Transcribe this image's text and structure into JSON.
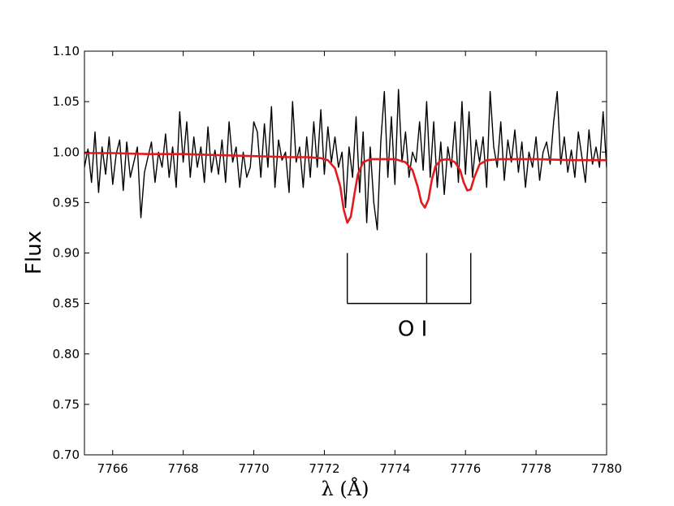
{
  "chart_data": {
    "type": "line",
    "xlabel": "λ (Å)",
    "ylabel": "Flux",
    "xlim": [
      7765.2,
      7780
    ],
    "ylim": [
      0.7,
      1.1
    ],
    "xticks": [
      "7766",
      "7768",
      "7770",
      "7772",
      "7774",
      "7776",
      "7778",
      "7780"
    ],
    "yticks": [
      "0.70",
      "0.75",
      "0.80",
      "0.85",
      "0.90",
      "0.95",
      "1.00",
      "1.05",
      "1.10"
    ],
    "grid": false,
    "series": [
      {
        "color": "#000000",
        "style": "observed",
        "x": [
          7765.2,
          7765.3,
          7765.4,
          7765.5,
          7765.6,
          7765.7,
          7765.8,
          7765.9,
          7766.0,
          7766.1,
          7766.2,
          7766.3,
          7766.4,
          7766.5,
          7766.6,
          7766.7,
          7766.8,
          7766.9,
          7767.0,
          7767.1,
          7767.2,
          7767.3,
          7767.4,
          7767.5,
          7767.6,
          7767.7,
          7767.8,
          7767.9,
          7768.0,
          7768.1,
          7768.2,
          7768.3,
          7768.4,
          7768.5,
          7768.6,
          7768.7,
          7768.8,
          7768.9,
          7769.0,
          7769.1,
          7769.2,
          7769.3,
          7769.4,
          7769.5,
          7769.6,
          7769.7,
          7769.8,
          7769.9,
          7770.0,
          7770.1,
          7770.2,
          7770.3,
          7770.4,
          7770.5,
          7770.6,
          7770.7,
          7770.8,
          7770.9,
          7771.0,
          7771.1,
          7771.2,
          7771.3,
          7771.4,
          7771.5,
          7771.6,
          7771.7,
          7771.8,
          7771.9,
          7772.0,
          7772.1,
          7772.2,
          7772.3,
          7772.4,
          7772.5,
          7772.6,
          7772.7,
          7772.8,
          7772.9,
          7773.0,
          7773.1,
          7773.2,
          7773.3,
          7773.4,
          7773.5,
          7773.6,
          7773.7,
          7773.8,
          7773.9,
          7774.0,
          7774.1,
          7774.2,
          7774.3,
          7774.4,
          7774.5,
          7774.6,
          7774.7,
          7774.8,
          7774.9,
          7775.0,
          7775.1,
          7775.2,
          7775.3,
          7775.4,
          7775.5,
          7775.6,
          7775.7,
          7775.8,
          7775.9,
          7776.0,
          7776.1,
          7776.2,
          7776.3,
          7776.4,
          7776.5,
          7776.6,
          7776.7,
          7776.8,
          7776.9,
          7777.0,
          7777.1,
          7777.2,
          7777.3,
          7777.4,
          7777.5,
          7777.6,
          7777.7,
          7777.8,
          7777.9,
          7778.0,
          7778.1,
          7778.2,
          7778.3,
          7778.4,
          7778.5,
          7778.6,
          7778.7,
          7778.8,
          7778.9,
          7779.0,
          7779.1,
          7779.2,
          7779.3,
          7779.4,
          7779.5,
          7779.6,
          7779.7,
          7779.8,
          7779.9,
          7780.0
        ],
        "y": [
          0.985,
          1.003,
          0.97,
          1.02,
          0.96,
          1.005,
          0.978,
          1.015,
          0.968,
          0.998,
          1.012,
          0.962,
          1.01,
          0.975,
          0.99,
          1.005,
          0.935,
          0.98,
          0.995,
          1.01,
          0.97,
          1.0,
          0.985,
          1.018,
          0.975,
          1.005,
          0.965,
          1.04,
          0.99,
          1.03,
          0.975,
          1.015,
          0.985,
          1.005,
          0.97,
          1.025,
          0.98,
          1.002,
          0.978,
          1.012,
          0.97,
          1.03,
          0.99,
          1.005,
          0.965,
          1.0,
          0.975,
          0.985,
          1.03,
          1.02,
          0.975,
          1.028,
          0.985,
          1.045,
          0.965,
          1.012,
          0.992,
          1.0,
          0.96,
          1.05,
          0.99,
          1.005,
          0.965,
          1.015,
          0.975,
          1.03,
          0.985,
          1.042,
          0.978,
          1.025,
          0.99,
          1.015,
          0.985,
          1.0,
          0.945,
          1.005,
          0.975,
          1.035,
          0.96,
          1.02,
          0.93,
          1.005,
          0.95,
          0.923,
          1.01,
          1.06,
          0.975,
          1.035,
          0.968,
          1.062,
          0.99,
          1.02,
          0.975,
          1.0,
          0.99,
          1.03,
          0.982,
          1.05,
          0.975,
          1.03,
          0.965,
          1.01,
          0.958,
          1.005,
          0.985,
          1.03,
          0.97,
          1.05,
          0.978,
          1.04,
          0.975,
          1.012,
          0.99,
          1.015,
          0.965,
          1.06,
          1.005,
          0.985,
          1.03,
          0.972,
          1.012,
          0.99,
          1.022,
          0.98,
          1.01,
          0.965,
          1.0,
          0.985,
          1.015,
          0.972,
          1.0,
          1.01,
          0.988,
          1.03,
          1.06,
          0.988,
          1.015,
          0.98,
          1.002,
          0.975,
          1.02,
          0.995,
          0.97,
          1.022,
          0.988,
          1.005,
          0.985,
          1.04,
          0.985
        ]
      },
      {
        "color": "#e31a1c",
        "style": "model",
        "x": [
          7765.2,
          7766.0,
          7767.0,
          7768.0,
          7769.0,
          7770.0,
          7771.0,
          7771.5,
          7771.9,
          7772.1,
          7772.3,
          7772.45,
          7772.55,
          7772.65,
          7772.75,
          7772.85,
          7772.95,
          7773.1,
          7773.3,
          7773.6,
          7774.0,
          7774.3,
          7774.5,
          7774.65,
          7774.75,
          7774.85,
          7774.95,
          7775.05,
          7775.15,
          7775.3,
          7775.5,
          7775.7,
          7775.85,
          7775.95,
          7776.05,
          7776.15,
          7776.25,
          7776.4,
          7776.6,
          7777.0,
          7778.0,
          7779.0,
          7780.0
        ],
        "y": [
          0.999,
          0.999,
          0.998,
          0.998,
          0.997,
          0.996,
          0.995,
          0.995,
          0.994,
          0.992,
          0.984,
          0.966,
          0.943,
          0.93,
          0.936,
          0.958,
          0.978,
          0.99,
          0.993,
          0.993,
          0.993,
          0.99,
          0.982,
          0.965,
          0.95,
          0.945,
          0.953,
          0.973,
          0.986,
          0.992,
          0.993,
          0.99,
          0.982,
          0.97,
          0.962,
          0.963,
          0.975,
          0.988,
          0.992,
          0.993,
          0.993,
          0.992,
          0.992
        ]
      }
    ],
    "annotations": [
      {
        "text": "O I",
        "marker_x": [
          7772.65,
          7774.9,
          7776.15
        ],
        "marker_top": 0.9,
        "marker_bottom": 0.85,
        "label_x": 7774.5,
        "label_y": 0.818
      }
    ]
  }
}
